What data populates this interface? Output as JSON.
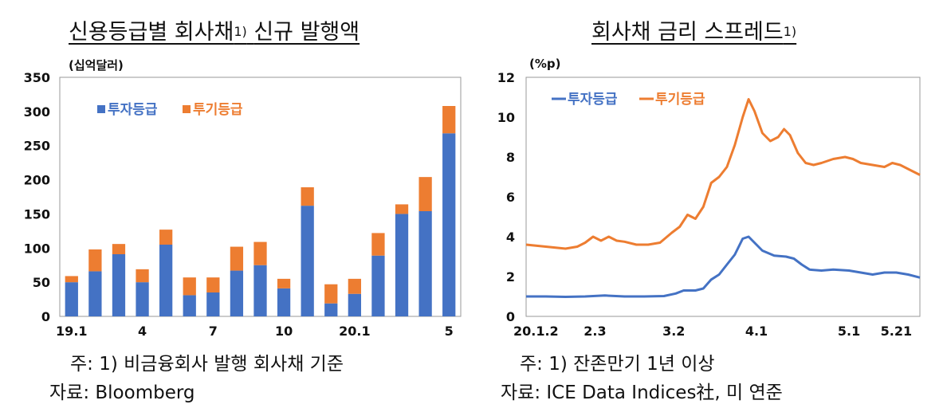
{
  "left": {
    "title": "신용등급별 회사채",
    "title_sup": "1)",
    "title_tail": "신규 발행액",
    "unit": "(십억달러)",
    "note1": "주: 1) 비금융회사 발행 회사채 기준",
    "note2": "자료: Bloomberg"
  },
  "right": {
    "title": "회사채 금리 스프레드",
    "title_sup": "1)",
    "unit": "(%p)",
    "note1": "주: 1) 잔존만기 1년 이상",
    "note2": "자료: ICE Data Indices社, 미 연준"
  },
  "colors": {
    "blue": "#4472C4",
    "orange": "#ED7D31"
  },
  "chart_data": [
    {
      "type": "bar",
      "stacked": true,
      "ylim": [
        0,
        350
      ],
      "yticks": [
        "0",
        "50",
        "100",
        "150",
        "200",
        "250",
        "300",
        "350"
      ],
      "ytick_values": [
        0,
        50,
        100,
        150,
        200,
        250,
        300,
        350
      ],
      "categories": [
        "19.1",
        "2",
        "3",
        "4",
        "5",
        "6",
        "7",
        "8",
        "9",
        "10",
        "11",
        "12",
        "20.1",
        "2",
        "3",
        "4",
        "5"
      ],
      "xtick_labels": [
        {
          "index": 0,
          "text": "19.1"
        },
        {
          "index": 3,
          "text": "4"
        },
        {
          "index": 6,
          "text": "7"
        },
        {
          "index": 9,
          "text": "10"
        },
        {
          "index": 12,
          "text": "20.1"
        },
        {
          "index": 16,
          "text": "5"
        }
      ],
      "legend_position": "upper-left",
      "series": [
        {
          "name": "투자등급",
          "color": "#4472C4",
          "values": [
            50,
            66,
            91,
            50,
            105,
            31,
            35,
            67,
            75,
            41,
            162,
            19,
            33,
            89,
            150,
            154,
            268
          ]
        },
        {
          "name": "투기등급",
          "color": "#ED7D31",
          "values": [
            9,
            32,
            15,
            19,
            22,
            26,
            22,
            35,
            34,
            14,
            27,
            28,
            22,
            33,
            14,
            50,
            40
          ]
        }
      ]
    },
    {
      "type": "line",
      "ylim": [
        0,
        12
      ],
      "yticks": [
        "0",
        "2",
        "4",
        "6",
        "8",
        "10",
        "12"
      ],
      "ytick_values": [
        0,
        2,
        4,
        6,
        8,
        10,
        12
      ],
      "xlim": [
        0,
        100
      ],
      "xtick_labels": [
        {
          "x": 0,
          "text": "20.1.2"
        },
        {
          "x": 17.5,
          "text": "2.3"
        },
        {
          "x": 37.5,
          "text": "3.2"
        },
        {
          "x": 58.5,
          "text": "4.1"
        },
        {
          "x": 82,
          "text": "5.1"
        },
        {
          "x": 94,
          "text": "5.21"
        }
      ],
      "legend_position": "top-left",
      "series": [
        {
          "name": "투자등급",
          "color": "#4472C4",
          "points": [
            [
              0,
              1.0
            ],
            [
              5,
              1.0
            ],
            [
              10,
              0.98
            ],
            [
              15,
              1.0
            ],
            [
              20,
              1.05
            ],
            [
              25,
              1.0
            ],
            [
              30,
              1.0
            ],
            [
              35,
              1.02
            ],
            [
              38,
              1.15
            ],
            [
              40,
              1.3
            ],
            [
              43,
              1.3
            ],
            [
              45,
              1.4
            ],
            [
              47,
              1.85
            ],
            [
              49,
              2.1
            ],
            [
              51,
              2.6
            ],
            [
              53,
              3.1
            ],
            [
              55,
              3.9
            ],
            [
              56.5,
              4.0
            ],
            [
              58,
              3.7
            ],
            [
              60,
              3.3
            ],
            [
              63,
              3.05
            ],
            [
              66,
              3.0
            ],
            [
              68,
              2.9
            ],
            [
              70,
              2.6
            ],
            [
              72,
              2.35
            ],
            [
              75,
              2.3
            ],
            [
              78,
              2.35
            ],
            [
              82,
              2.3
            ],
            [
              85,
              2.2
            ],
            [
              88,
              2.1
            ],
            [
              91,
              2.2
            ],
            [
              94,
              2.2
            ],
            [
              97,
              2.1
            ],
            [
              100,
              1.95
            ]
          ]
        },
        {
          "name": "투기등급",
          "color": "#ED7D31",
          "points": [
            [
              0,
              3.6
            ],
            [
              5,
              3.5
            ],
            [
              10,
              3.4
            ],
            [
              13,
              3.5
            ],
            [
              15,
              3.7
            ],
            [
              17,
              4.0
            ],
            [
              19,
              3.8
            ],
            [
              21,
              4.0
            ],
            [
              23,
              3.8
            ],
            [
              25,
              3.75
            ],
            [
              28,
              3.6
            ],
            [
              31,
              3.6
            ],
            [
              34,
              3.7
            ],
            [
              37,
              4.2
            ],
            [
              39,
              4.5
            ],
            [
              41,
              5.1
            ],
            [
              43,
              4.9
            ],
            [
              45,
              5.5
            ],
            [
              47,
              6.7
            ],
            [
              49,
              7.0
            ],
            [
              51,
              7.5
            ],
            [
              53,
              8.6
            ],
            [
              55,
              10.0
            ],
            [
              56.5,
              10.9
            ],
            [
              58,
              10.3
            ],
            [
              60,
              9.2
            ],
            [
              62,
              8.8
            ],
            [
              64,
              9.0
            ],
            [
              65.5,
              9.4
            ],
            [
              67,
              9.1
            ],
            [
              69,
              8.2
            ],
            [
              71,
              7.7
            ],
            [
              73,
              7.6
            ],
            [
              75,
              7.7
            ],
            [
              78,
              7.9
            ],
            [
              81,
              8.0
            ],
            [
              83,
              7.9
            ],
            [
              85,
              7.7
            ],
            [
              88,
              7.6
            ],
            [
              91,
              7.5
            ],
            [
              93,
              7.7
            ],
            [
              95,
              7.6
            ],
            [
              98,
              7.3
            ],
            [
              100,
              7.1
            ]
          ]
        }
      ]
    }
  ]
}
